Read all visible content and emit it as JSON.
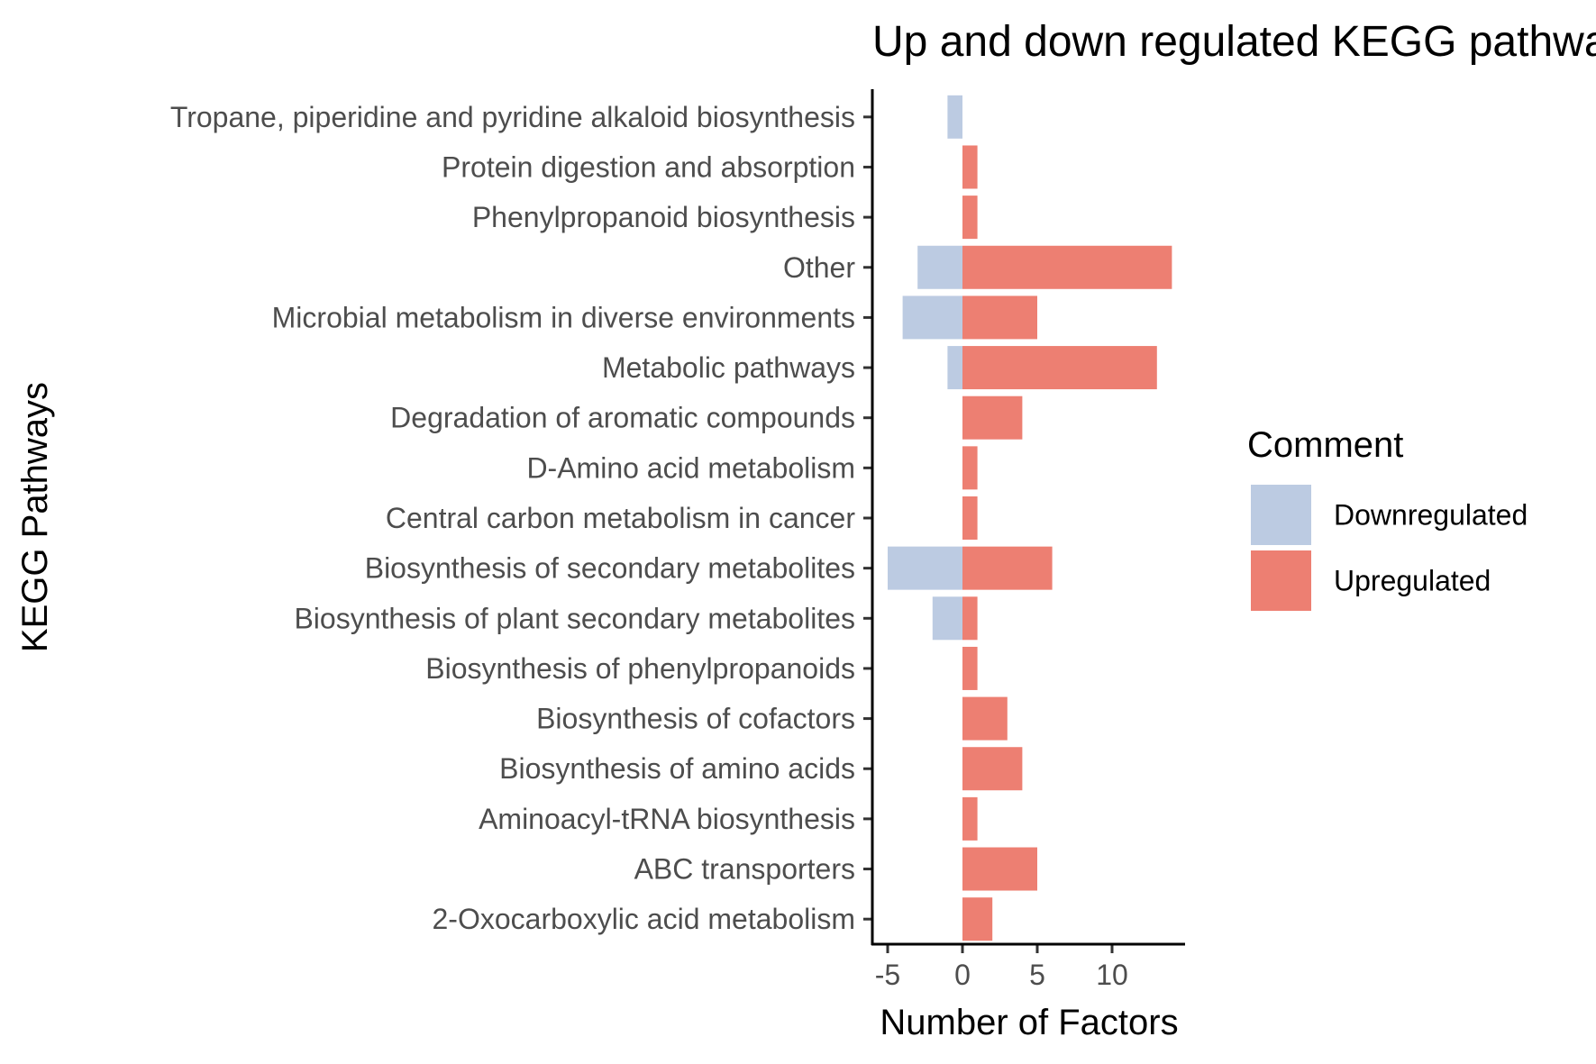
{
  "chart_data": {
    "type": "bar",
    "orientation": "horizontal",
    "title": "Up and down regulated KEGG pathways",
    "xlabel": "Number of Factors",
    "ylabel": "KEGG Pathways",
    "xlim": [
      -5.5,
      15.5
    ],
    "xticks": [
      -5,
      0,
      5,
      10
    ],
    "grid": false,
    "legend_title": "Comment",
    "legend_position": "right",
    "categories": [
      "Tropane, piperidine and pyridine alkaloid biosynthesis",
      "Protein digestion and absorption",
      "Phenylpropanoid biosynthesis",
      "Other",
      "Microbial metabolism in diverse environments",
      "Metabolic pathways",
      "Degradation of aromatic compounds",
      "D-Amino acid metabolism",
      "Central carbon metabolism in cancer",
      "Biosynthesis of secondary metabolites",
      "Biosynthesis of plant secondary metabolites",
      "Biosynthesis of phenylpropanoids",
      "Biosynthesis of cofactors",
      "Biosynthesis of amino acids",
      "Aminoacyl-tRNA biosynthesis",
      "ABC transporters",
      "2-Oxocarboxylic acid metabolism"
    ],
    "series": [
      {
        "name": "Downregulated",
        "color": "#bccbe2",
        "values": [
          -1,
          0,
          0,
          -3,
          -4,
          -1,
          0,
          0,
          0,
          -5,
          -2,
          0,
          0,
          0,
          0,
          0,
          0
        ]
      },
      {
        "name": "Upregulated",
        "color": "#ed7f72",
        "values": [
          0,
          1,
          1,
          14,
          5,
          13,
          4,
          1,
          1,
          6,
          1,
          1,
          3,
          4,
          1,
          5,
          2
        ]
      }
    ]
  }
}
